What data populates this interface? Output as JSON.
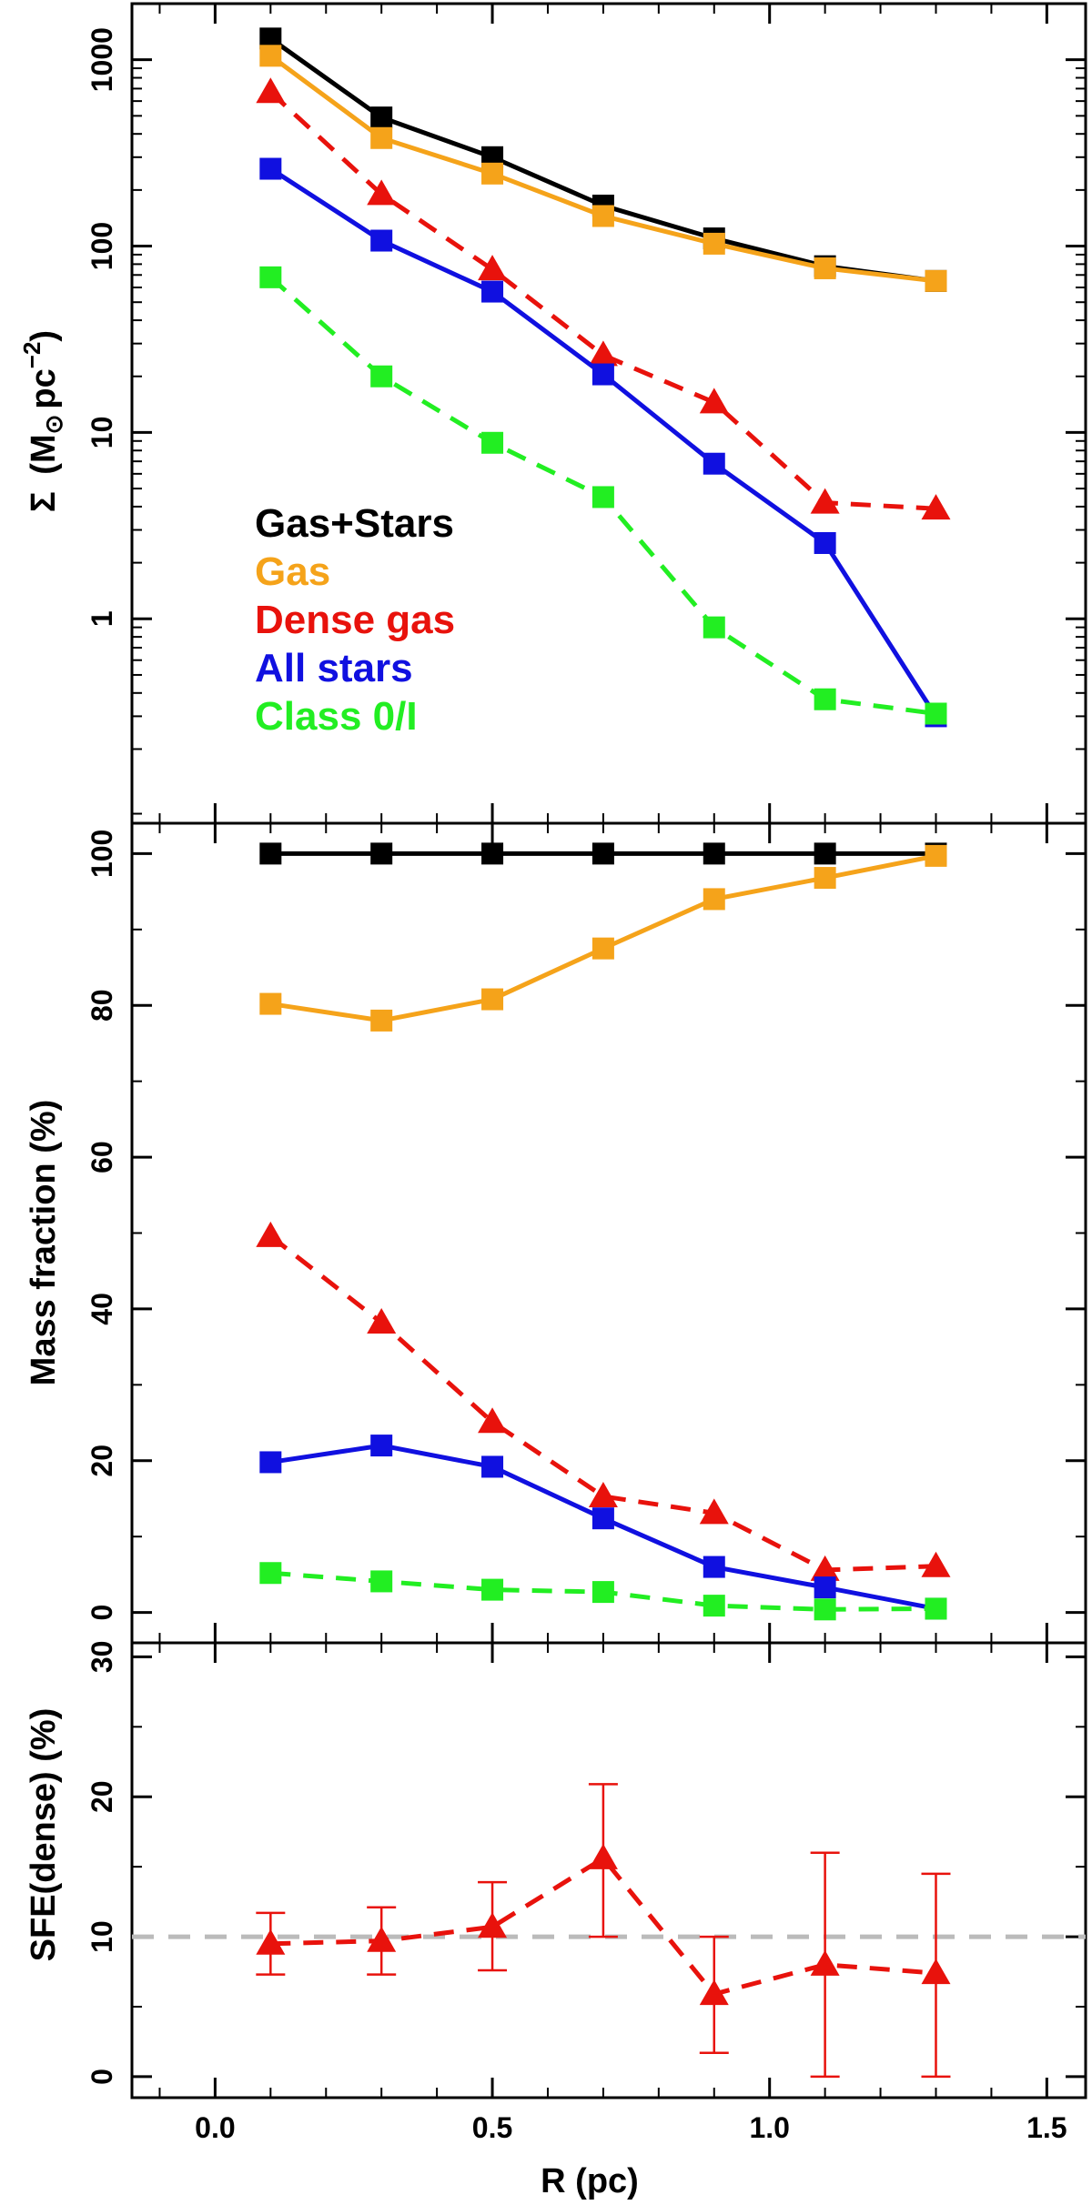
{
  "chart_data": [
    {
      "type": "line",
      "panel": "top",
      "yscale": "log",
      "ylabel_symbol": "Σ",
      "ylabel_unit_m": "M",
      "ylabel_unit_sun": "⊙",
      "ylabel_unit_pc": "pc",
      "ylabel_unit_exp": "−2",
      "ylim": [
        0.08,
        2000
      ],
      "yticks": [
        {
          "v": 1,
          "label": "1"
        },
        {
          "v": 10,
          "label": "10"
        },
        {
          "v": 100,
          "label": "100"
        },
        {
          "v": 1000,
          "label": "1000"
        }
      ],
      "xlim": [
        -0.15,
        1.57
      ],
      "x": [
        0.1,
        0.3,
        0.5,
        0.7,
        0.9,
        1.1,
        1.3
      ],
      "series": [
        {
          "name": "Gas+Stars",
          "color": "#000000",
          "marker": "square",
          "dash": false,
          "values": [
            1300,
            490,
            300,
            165,
            110,
            78,
            65
          ]
        },
        {
          "name": "Gas",
          "color": "#f5a31a",
          "marker": "square",
          "dash": false,
          "values": [
            1050,
            380,
            245,
            145,
            103,
            76,
            65
          ]
        },
        {
          "name": "Dense gas",
          "color": "#e8120c",
          "marker": "triangle",
          "dash": true,
          "values": [
            670,
            190,
            75,
            26,
            14.5,
            4.2,
            3.9
          ]
        },
        {
          "name": "All stars",
          "color": "#1010e0",
          "marker": "square",
          "dash": false,
          "values": [
            260,
            107,
            57,
            20.5,
            6.8,
            2.55,
            0.3
          ]
        },
        {
          "name": "Class 0/I",
          "color": "#22ee22",
          "marker": "square",
          "dash": true,
          "values": [
            68,
            20,
            8.8,
            4.5,
            0.9,
            0.37,
            0.31
          ]
        }
      ],
      "legend": {
        "position": "lower-left",
        "entries": [
          "Gas+Stars",
          "Gas",
          "Dense gas",
          "All stars",
          "Class 0/I"
        ]
      }
    },
    {
      "type": "line",
      "panel": "middle",
      "ylabel": "Mass fraction (%)",
      "ylim": [
        -4,
        104
      ],
      "yticks": [
        {
          "v": 0,
          "label": "0"
        },
        {
          "v": 20,
          "label": "20"
        },
        {
          "v": 40,
          "label": "40"
        },
        {
          "v": 60,
          "label": "60"
        },
        {
          "v": 80,
          "label": "80"
        },
        {
          "v": 100,
          "label": "100"
        }
      ],
      "xlim": [
        -0.15,
        1.57
      ],
      "x": [
        0.1,
        0.3,
        0.5,
        0.7,
        0.9,
        1.1,
        1.3
      ],
      "series": [
        {
          "name": "Gas+Stars",
          "color": "#000000",
          "marker": "square",
          "dash": false,
          "values": [
            100,
            100,
            100,
            100,
            100,
            100,
            100
          ]
        },
        {
          "name": "Gas",
          "color": "#f5a31a",
          "marker": "square",
          "dash": false,
          "values": [
            80.2,
            78,
            80.8,
            87.5,
            94,
            96.8,
            99.7
          ]
        },
        {
          "name": "Dense gas",
          "color": "#e8120c",
          "marker": "triangle",
          "dash": true,
          "values": [
            49.6,
            38.2,
            25.1,
            15.3,
            13.1,
            5.6,
            6.1
          ]
        },
        {
          "name": "All stars",
          "color": "#1010e0",
          "marker": "square",
          "dash": false,
          "values": [
            19.8,
            22,
            19.2,
            12.4,
            6,
            3.3,
            0.5
          ]
        },
        {
          "name": "Class 0/I",
          "color": "#22ee22",
          "marker": "square",
          "dash": true,
          "values": [
            5.2,
            4.1,
            3,
            2.7,
            0.9,
            0.4,
            0.5
          ]
        }
      ]
    },
    {
      "type": "line",
      "panel": "bottom",
      "ylabel": "SFE(dense) (%)",
      "xlabel": "R (pc)",
      "ylim": [
        -1.5,
        31
      ],
      "yticks": [
        {
          "v": 0,
          "label": "0"
        },
        {
          "v": 10,
          "label": "10"
        },
        {
          "v": 20,
          "label": "20"
        },
        {
          "v": 30,
          "label": "30"
        }
      ],
      "xlim": [
        -0.15,
        1.57
      ],
      "xticks": [
        {
          "v": 0,
          "label": "0.0"
        },
        {
          "v": 0.5,
          "label": "0.5"
        },
        {
          "v": 1,
          "label": "1.0"
        },
        {
          "v": 1.5,
          "label": "1.5"
        }
      ],
      "reference_line": {
        "y": 10,
        "color": "#bbbbbb",
        "dash": true
      },
      "x": [
        0.1,
        0.3,
        0.5,
        0.7,
        0.9,
        1.1,
        1.3
      ],
      "series": [
        {
          "name": "SFE(dense)",
          "color": "#e8120c",
          "marker": "triangle",
          "dash": true,
          "values": [
            9.5,
            9.7,
            10.7,
            15.6,
            5.9,
            8,
            7.4
          ],
          "err_low": [
            7.3,
            7.3,
            7.6,
            10,
            1.7,
            0,
            0
          ],
          "err_high": [
            11.7,
            12.1,
            13.9,
            20.9,
            10,
            16,
            14.5
          ]
        }
      ]
    }
  ]
}
